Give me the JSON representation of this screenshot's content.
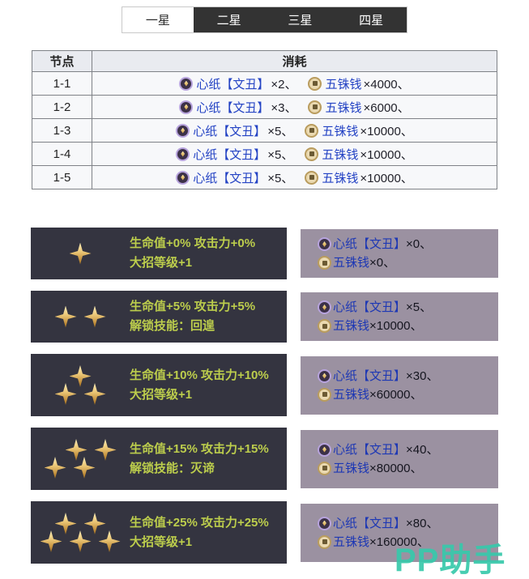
{
  "tabs": [
    {
      "label": "一星",
      "active": true
    },
    {
      "label": "二星",
      "active": false
    },
    {
      "label": "三星",
      "active": false
    },
    {
      "label": "四星",
      "active": false
    }
  ],
  "table": {
    "headers": [
      "节点",
      "消耗"
    ],
    "rows": [
      {
        "node": "1-1",
        "items": [
          {
            "icon": "xinzhi-icon",
            "name": "心纸【文丑】",
            "count": "×2、"
          },
          {
            "icon": "coin-icon",
            "name": "五铢钱",
            "count": "×4000、"
          }
        ]
      },
      {
        "node": "1-2",
        "items": [
          {
            "icon": "xinzhi-icon",
            "name": "心纸【文丑】",
            "count": "×3、"
          },
          {
            "icon": "coin-icon",
            "name": "五铢钱",
            "count": "×6000、"
          }
        ]
      },
      {
        "node": "1-3",
        "items": [
          {
            "icon": "xinzhi-icon",
            "name": "心纸【文丑】",
            "count": "×5、"
          },
          {
            "icon": "coin-icon",
            "name": "五铢钱",
            "count": "×10000、"
          }
        ]
      },
      {
        "node": "1-4",
        "items": [
          {
            "icon": "xinzhi-icon",
            "name": "心纸【文丑】",
            "count": "×5、"
          },
          {
            "icon": "coin-icon",
            "name": "五铢钱",
            "count": "×10000、"
          }
        ]
      },
      {
        "node": "1-5",
        "items": [
          {
            "icon": "xinzhi-icon",
            "name": "心纸【文丑】",
            "count": "×5、"
          },
          {
            "icon": "coin-icon",
            "name": "五铢钱",
            "count": "×10000、"
          }
        ]
      }
    ]
  },
  "panels": [
    {
      "stars": 1,
      "line1": "生命值+0% 攻击力+0%",
      "line2": "大招等级+1",
      "items": [
        {
          "icon": "xinzhi-icon",
          "name": "心纸【文丑】",
          "count": "×0、"
        },
        {
          "icon": "coin-icon",
          "name": "五铢钱",
          "count": "×0、"
        }
      ]
    },
    {
      "stars": 2,
      "line1": "生命值+5% 攻击力+5%",
      "line2": "解锁技能：回遑",
      "items": [
        {
          "icon": "xinzhi-icon",
          "name": "心纸【文丑】",
          "count": "×5、"
        },
        {
          "icon": "coin-icon",
          "name": "五铢钱",
          "count": "×10000、"
        }
      ]
    },
    {
      "stars": 3,
      "line1": "生命值+10% 攻击力+10%",
      "line2": "大招等级+1",
      "items": [
        {
          "icon": "xinzhi-icon",
          "name": "心纸【文丑】",
          "count": "×30、"
        },
        {
          "icon": "coin-icon",
          "name": "五铢钱",
          "count": "×60000、"
        }
      ]
    },
    {
      "stars": 4,
      "line1": "生命值+15% 攻击力+15%",
      "line2": "解锁技能：灭谛",
      "items": [
        {
          "icon": "xinzhi-icon",
          "name": "心纸【文丑】",
          "count": "×40、"
        },
        {
          "icon": "coin-icon",
          "name": "五铢钱",
          "count": "×80000、"
        }
      ]
    },
    {
      "stars": 5,
      "line1": "生命值+25% 攻击力+25%",
      "line2": "大招等级+1",
      "items": [
        {
          "icon": "xinzhi-icon",
          "name": "心纸【文丑】",
          "count": "×80、"
        },
        {
          "icon": "coin-icon",
          "name": "五铢钱",
          "count": "×160000、"
        }
      ]
    }
  ],
  "watermark": {
    "text": "PP助手"
  },
  "colors": {
    "link_blue": "#2443c4",
    "panel_green_text": "#bccd4c",
    "watermark_teal": "#38c9ab",
    "tab_dark": "#333333",
    "panel_dark": "#343440",
    "panel_purple": "#9b91a1",
    "star_gold": "#e0b55e"
  }
}
